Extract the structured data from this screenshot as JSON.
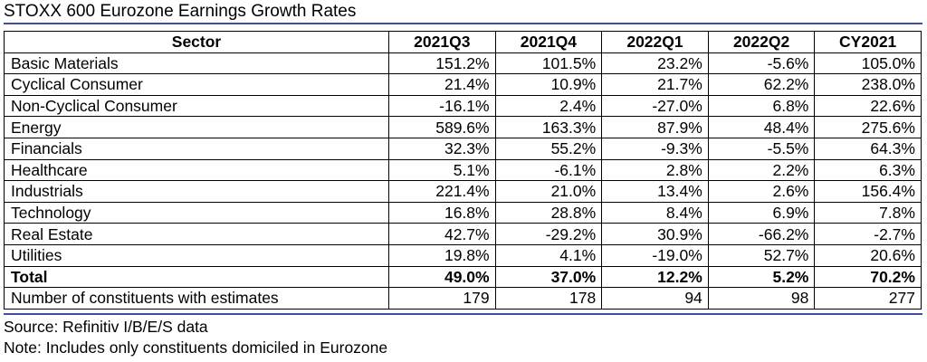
{
  "chart_data": {
    "type": "table",
    "title": "STOXX 600 Eurozone Earnings Growth Rates",
    "columns": [
      "Sector",
      "2021Q3",
      "2021Q4",
      "2022Q1",
      "2022Q2",
      "CY2021"
    ],
    "rows": [
      {
        "label": "Basic Materials",
        "values": [
          "151.2%",
          "101.5%",
          "23.2%",
          "-5.6%",
          "105.0%"
        ]
      },
      {
        "label": "Cyclical Consumer",
        "values": [
          "21.4%",
          "10.9%",
          "21.7%",
          "62.2%",
          "238.0%"
        ]
      },
      {
        "label": "Non-Cyclical Consumer",
        "values": [
          "-16.1%",
          "2.4%",
          "-27.0%",
          "6.8%",
          "22.6%"
        ]
      },
      {
        "label": "Energy",
        "values": [
          "589.6%",
          "163.3%",
          "87.9%",
          "48.4%",
          "275.6%"
        ]
      },
      {
        "label": "Financials",
        "values": [
          "32.3%",
          "55.2%",
          "-9.3%",
          "-5.5%",
          "64.3%"
        ]
      },
      {
        "label": "Healthcare",
        "values": [
          "5.1%",
          "-6.1%",
          "2.8%",
          "2.2%",
          "6.3%"
        ]
      },
      {
        "label": "Industrials",
        "values": [
          "221.4%",
          "21.0%",
          "13.4%",
          "2.6%",
          "156.4%"
        ]
      },
      {
        "label": "Technology",
        "values": [
          "16.8%",
          "28.8%",
          "8.4%",
          "6.9%",
          "7.8%"
        ]
      },
      {
        "label": "Real Estate",
        "values": [
          "42.7%",
          "-29.2%",
          "30.9%",
          "-66.2%",
          "-2.7%"
        ]
      },
      {
        "label": "Utilities",
        "values": [
          "19.8%",
          "4.1%",
          "-19.0%",
          "52.7%",
          "20.6%"
        ]
      }
    ],
    "total": {
      "label": "Total",
      "values": [
        "49.0%",
        "37.0%",
        "12.2%",
        "5.2%",
        "70.2%"
      ]
    },
    "constituents": {
      "label": "Number of constituents with estimates",
      "values": [
        "179",
        "178",
        "94",
        "98",
        "277"
      ]
    },
    "notes": [
      "Source: Refinitiv I/B/E/S data",
      "Note: Includes only constituents domiciled in Eurozone"
    ]
  },
  "colors": {
    "rule": "#3f4f9e",
    "border": "#000000",
    "text": "#000000"
  }
}
